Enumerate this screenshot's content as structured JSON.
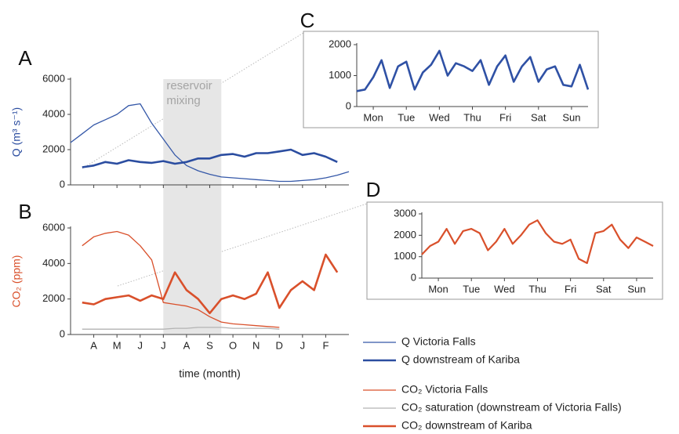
{
  "chart_data": [
    {
      "type": "line",
      "panel": "A",
      "ylabel": "Q (m³ s⁻¹)",
      "xlim": [
        0,
        12
      ],
      "xticks": [
        1,
        2,
        3,
        4,
        5,
        6,
        7,
        8,
        9,
        10,
        11
      ],
      "ylim": [
        0,
        6000
      ],
      "yticks": [
        0,
        2000,
        4000,
        6000
      ],
      "x": [
        0,
        0.5,
        1,
        1.5,
        2,
        2.5,
        3,
        3.5,
        4,
        4.5,
        5,
        5.5,
        6,
        6.5,
        7,
        7.5,
        8,
        8.5,
        9,
        9.5,
        10,
        10.5,
        11,
        11.5,
        12
      ],
      "annotation": {
        "text": [
          "reservoir",
          "mixing"
        ],
        "span": [
          4,
          6.5
        ]
      },
      "series": [
        {
          "name": "Q Victoria Falls",
          "color": "#3558a8",
          "width": 1.3,
          "values": [
            2400,
            2900,
            3400,
            3700,
            4000,
            4500,
            4600,
            3500,
            2600,
            1700,
            1100,
            800,
            600,
            450,
            400,
            350,
            300,
            250,
            200,
            200,
            250,
            300,
            400,
            550,
            750
          ]
        },
        {
          "name": "Q downstream of Kariba",
          "color": "#2b4da0",
          "width": 2.6,
          "values": [
            null,
            1000,
            1100,
            1300,
            1200,
            1400,
            1300,
            1250,
            1350,
            1200,
            1300,
            1500,
            1500,
            1700,
            1750,
            1600,
            1800,
            1800,
            1900,
            2000,
            1700,
            1800,
            1600,
            1300,
            null
          ]
        }
      ]
    },
    {
      "type": "line",
      "panel": "B",
      "ylabel": "CO₂ (ppm)",
      "xlabel": "time (month)",
      "xlim": [
        0,
        12
      ],
      "xticks": [
        {
          "value": 1,
          "label": "A"
        },
        {
          "value": 2,
          "label": "M"
        },
        {
          "value": 3,
          "label": "J"
        },
        {
          "value": 4,
          "label": "J"
        },
        {
          "value": 5,
          "label": "A"
        },
        {
          "value": 6,
          "label": "S"
        },
        {
          "value": 7,
          "label": "O"
        },
        {
          "value": 8,
          "label": "N"
        },
        {
          "value": 9,
          "label": "D"
        },
        {
          "value": 10,
          "label": "J"
        },
        {
          "value": 11,
          "label": "F"
        }
      ],
      "ylim": [
        0,
        6000
      ],
      "yticks": [
        0,
        2000,
        4000,
        6000
      ],
      "x": [
        0,
        0.5,
        1,
        1.5,
        2,
        2.5,
        3,
        3.5,
        4,
        4.5,
        5,
        5.5,
        6,
        6.5,
        7,
        7.5,
        8,
        8.5,
        9,
        9.5,
        10,
        10.5,
        11,
        11.5,
        12
      ],
      "series": [
        {
          "name": "CO₂ Victoria Falls",
          "color": "#d9502b",
          "width": 1.3,
          "values": [
            null,
            5000,
            5500,
            5700,
            5800,
            5600,
            5000,
            4200,
            1800,
            1700,
            1600,
            1400,
            1000,
            700,
            600,
            550,
            500,
            450,
            400,
            null,
            null,
            null,
            null,
            null,
            null
          ]
        },
        {
          "name": "CO₂ saturation (downstream of Victoria Falls)",
          "color": "#b3b3b3",
          "width": 1.3,
          "values": [
            null,
            300,
            300,
            300,
            300,
            300,
            300,
            300,
            300,
            350,
            350,
            400,
            400,
            400,
            350,
            350,
            350,
            350,
            300,
            null,
            null,
            null,
            null,
            null,
            null
          ]
        },
        {
          "name": "CO₂ downstream of Kariba",
          "color": "#d9502b",
          "width": 2.6,
          "values": [
            null,
            1800,
            1700,
            2000,
            2100,
            2200,
            1900,
            2200,
            2000,
            3500,
            2500,
            2000,
            1200,
            2000,
            2200,
            2000,
            2300,
            3500,
            1500,
            2500,
            3000,
            2500,
            4500,
            3500,
            null
          ]
        }
      ]
    },
    {
      "type": "line",
      "panel": "C",
      "xlim": [
        0,
        7
      ],
      "xticks": [
        {
          "value": 0.5,
          "label": "Mon"
        },
        {
          "value": 1.5,
          "label": "Tue"
        },
        {
          "value": 2.5,
          "label": "Wed"
        },
        {
          "value": 3.5,
          "label": "Thu"
        },
        {
          "value": 4.5,
          "label": "Fri"
        },
        {
          "value": 5.5,
          "label": "Sat"
        },
        {
          "value": 6.5,
          "label": "Sun"
        }
      ],
      "ylim": [
        0,
        2000
      ],
      "yticks": [
        0,
        1000,
        2000
      ],
      "x": [
        0,
        0.25,
        0.5,
        0.75,
        1,
        1.25,
        1.5,
        1.75,
        2,
        2.25,
        2.5,
        2.75,
        3,
        3.25,
        3.5,
        3.75,
        4,
        4.25,
        4.5,
        4.75,
        5,
        5.25,
        5.5,
        5.75,
        6,
        6.25,
        6.5,
        6.75,
        7
      ],
      "series": [
        {
          "color": "#2f51a5",
          "width": 2.6,
          "values": [
            500,
            550,
            950,
            1500,
            600,
            1300,
            1450,
            550,
            1100,
            1350,
            1800,
            1000,
            1400,
            1300,
            1150,
            1500,
            700,
            1300,
            1650,
            800,
            1300,
            1600,
            800,
            1200,
            1300,
            700,
            650,
            1350,
            550
          ]
        }
      ]
    },
    {
      "type": "line",
      "panel": "D",
      "xlim": [
        0,
        7
      ],
      "xticks": [
        {
          "value": 0.5,
          "label": "Mon"
        },
        {
          "value": 1.5,
          "label": "Tue"
        },
        {
          "value": 2.5,
          "label": "Wed"
        },
        {
          "value": 3.5,
          "label": "Thu"
        },
        {
          "value": 4.5,
          "label": "Fri"
        },
        {
          "value": 5.5,
          "label": "Sat"
        },
        {
          "value": 6.5,
          "label": "Sun"
        }
      ],
      "ylim": [
        0,
        3000
      ],
      "yticks": [
        0,
        1000,
        2000,
        3000
      ],
      "x": [
        0,
        0.25,
        0.5,
        0.75,
        1,
        1.25,
        1.5,
        1.75,
        2,
        2.25,
        2.5,
        2.75,
        3,
        3.25,
        3.5,
        3.75,
        4,
        4.25,
        4.5,
        4.75,
        5,
        5.25,
        5.5,
        5.75,
        6,
        6.25,
        6.5,
        6.75,
        7
      ],
      "series": [
        {
          "color": "#d9502b",
          "width": 2.2,
          "values": [
            1100,
            1500,
            1700,
            2300,
            1600,
            2200,
            2300,
            2100,
            1300,
            1700,
            2300,
            1600,
            2000,
            2500,
            2700,
            2100,
            1700,
            1600,
            1800,
            900,
            700,
            2100,
            2200,
            2500,
            1800,
            1400,
            1900,
            1700,
            1500
          ]
        }
      ]
    }
  ]
}
